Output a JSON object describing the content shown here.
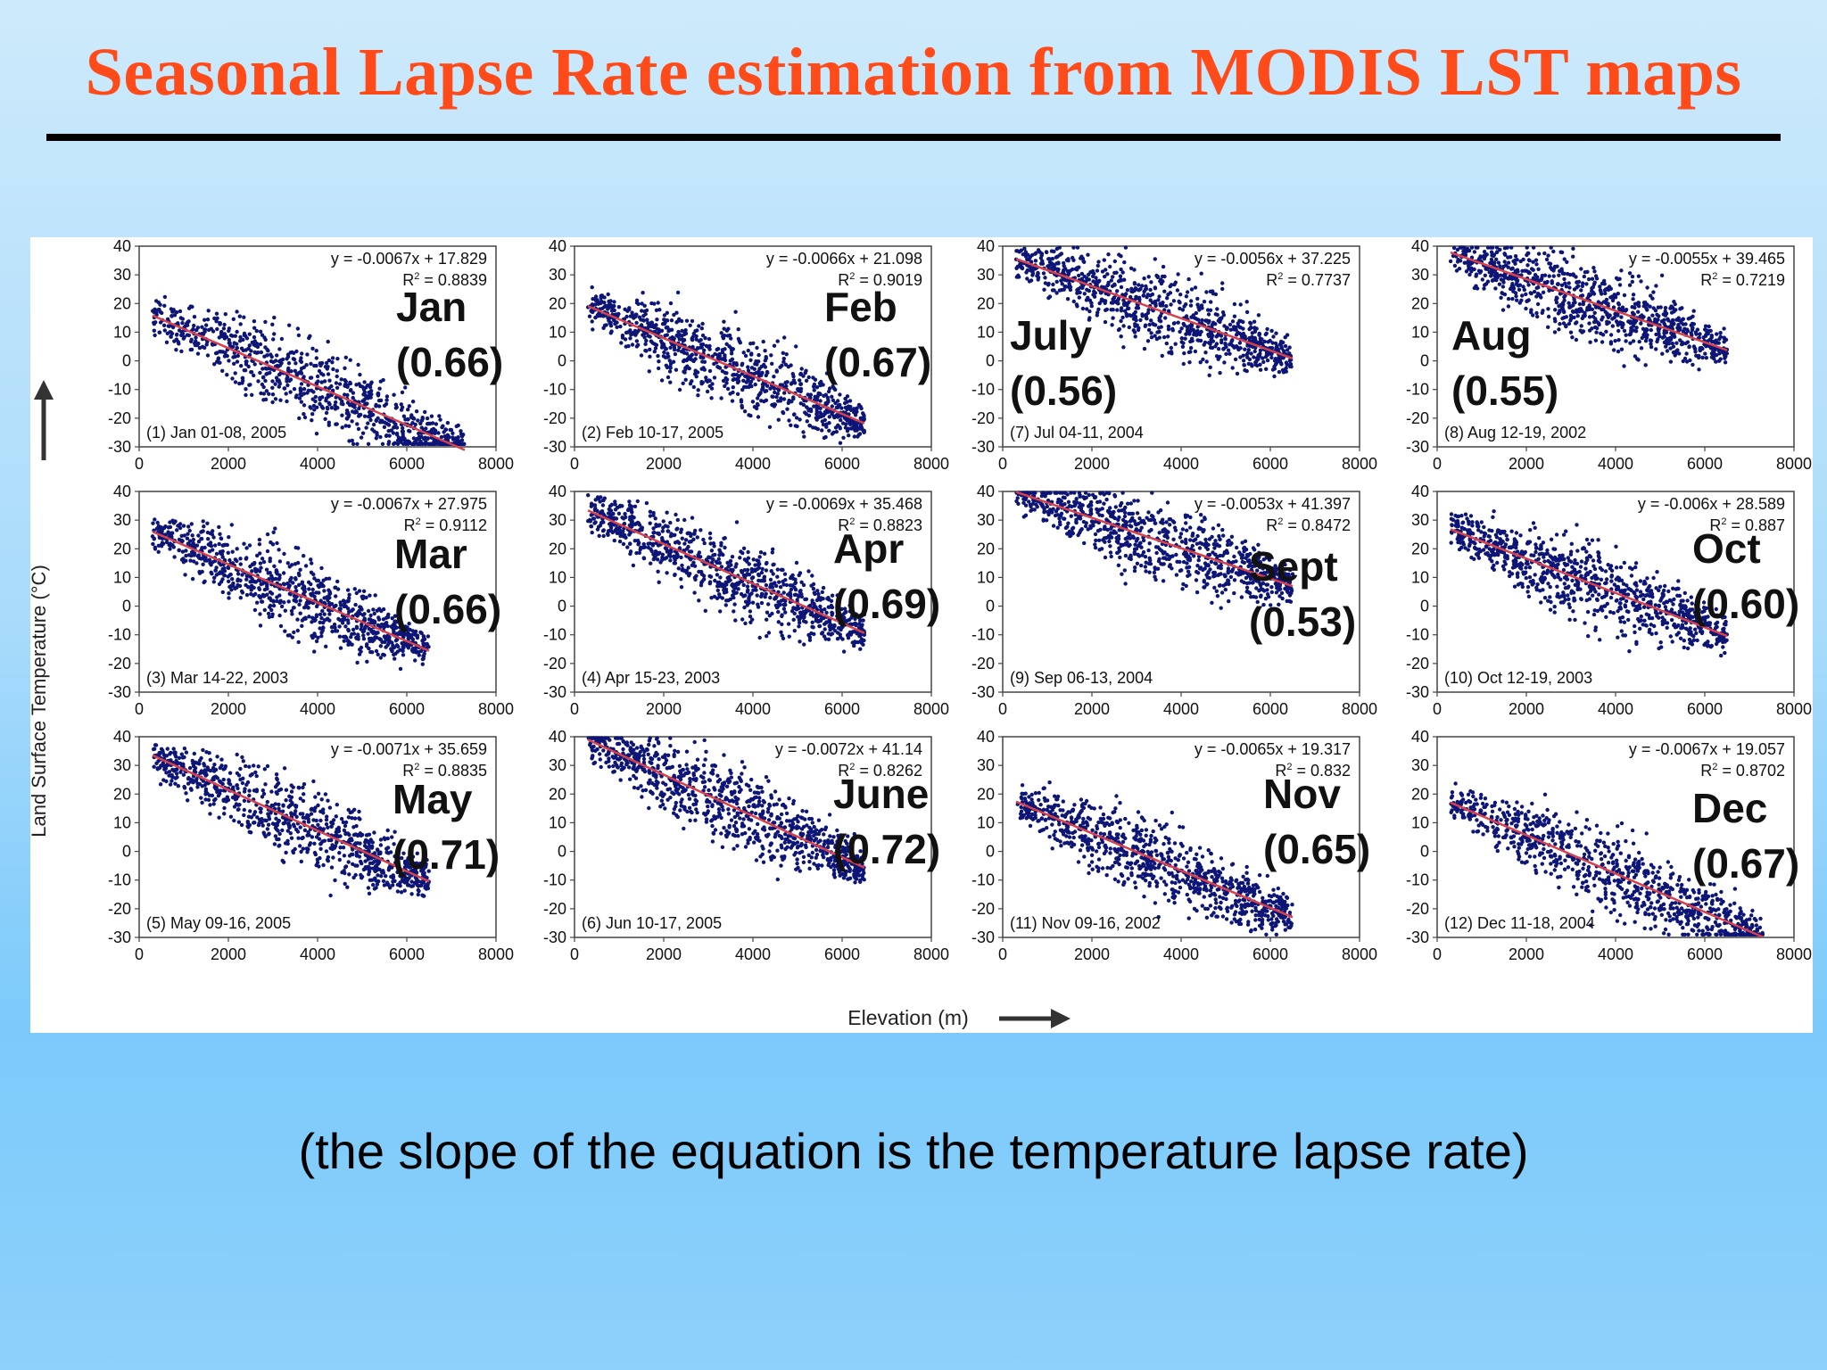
{
  "title": "Seasonal Lapse Rate estimation from MODIS LST maps",
  "caption": "(the slope of the equation is the temperature lapse rate)",
  "figure": {
    "ylabel": "Land Surface Temperature (°C)",
    "xlabel": "Elevation (m)"
  },
  "colors": {
    "title": "#ff4a1a",
    "points": "#0d1577",
    "fit_line": "#d8414a"
  },
  "chart_data": [
    {
      "type": "scatter",
      "panel_label": "(1) Jan 01-08, 2005",
      "equation": "y = -0.0067x + 17.829",
      "r2": "= 0.8839",
      "month": "Jan",
      "value": "(0.66)",
      "slope": -0.0067,
      "intercept": 17.829,
      "x_range": [
        300,
        7300
      ],
      "xlim": [
        0,
        8000
      ],
      "ylim": [
        -30,
        40
      ],
      "xticks": [
        "0",
        "2000",
        "4000",
        "6000",
        "8000"
      ],
      "yticks": [
        "40",
        "30",
        "20",
        "10",
        "0",
        "-10",
        "-20",
        "-30"
      ]
    },
    {
      "type": "scatter",
      "panel_label": "(2) Feb 10-17, 2005",
      "equation": "y = -0.0066x + 21.098",
      "r2": "= 0.9019",
      "month": "Feb",
      "value": "(0.67)",
      "slope": -0.0066,
      "intercept": 21.098,
      "x_range": [
        300,
        6500
      ],
      "xlim": [
        0,
        8000
      ],
      "ylim": [
        -30,
        40
      ],
      "xticks": [
        "0",
        "2000",
        "4000",
        "6000",
        "8000"
      ],
      "yticks": [
        "40",
        "30",
        "20",
        "10",
        "0",
        "-10",
        "-20",
        "-30"
      ]
    },
    {
      "type": "scatter",
      "panel_label": "(7) Jul 04-11, 2004",
      "equation": "y = -0.0056x + 37.225",
      "r2": "= 0.7737",
      "month": "July",
      "value": "(0.56)",
      "slope": -0.0056,
      "intercept": 37.225,
      "x_range": [
        300,
        6500
      ],
      "xlim": [
        0,
        8000
      ],
      "ylim": [
        -30,
        40
      ],
      "xticks": [
        "0",
        "2000",
        "4000",
        "6000",
        "8000"
      ],
      "yticks": [
        "40",
        "30",
        "20",
        "10",
        "0",
        "-10",
        "-20",
        "-30"
      ]
    },
    {
      "type": "scatter",
      "panel_label": "(8) Aug 12-19, 2002",
      "equation": "y = -0.0055x + 39.465",
      "r2": "= 0.7219",
      "month": "Aug",
      "value": "(0.55)",
      "slope": -0.0055,
      "intercept": 39.465,
      "x_range": [
        300,
        6500
      ],
      "xlim": [
        0,
        8000
      ],
      "ylim": [
        -30,
        40
      ],
      "xticks": [
        "0",
        "2000",
        "4000",
        "6000",
        "8000"
      ],
      "yticks": [
        "40",
        "30",
        "20",
        "10",
        "0",
        "-10",
        "-20",
        "-30"
      ]
    },
    {
      "type": "scatter",
      "panel_label": "(3) Mar 14-22, 2003",
      "equation": "y = -0.0067x + 27.975",
      "r2": "= 0.9112",
      "month": "Mar",
      "value": "(0.66)",
      "slope": -0.0067,
      "intercept": 27.975,
      "x_range": [
        300,
        6500
      ],
      "xlim": [
        0,
        8000
      ],
      "ylim": [
        -30,
        40
      ],
      "xticks": [
        "0",
        "2000",
        "4000",
        "6000",
        "8000"
      ],
      "yticks": [
        "40",
        "30",
        "20",
        "10",
        "0",
        "-10",
        "-20",
        "-30"
      ]
    },
    {
      "type": "scatter",
      "panel_label": "(4) Apr 15-23, 2003",
      "equation": "y = -0.0069x + 35.468",
      "r2": "= 0.8823",
      "month": "Apr",
      "value": "(0.69)",
      "slope": -0.0069,
      "intercept": 35.468,
      "x_range": [
        300,
        6500
      ],
      "xlim": [
        0,
        8000
      ],
      "ylim": [
        -30,
        40
      ],
      "xticks": [
        "0",
        "2000",
        "4000",
        "6000",
        "8000"
      ],
      "yticks": [
        "40",
        "30",
        "20",
        "10",
        "0",
        "-10",
        "-20",
        "-30"
      ]
    },
    {
      "type": "scatter",
      "panel_label": "(9) Sep 06-13, 2004",
      "equation": "y = -0.0053x + 41.397",
      "r2": "= 0.8472",
      "month": "Sept",
      "value": "(0.53)",
      "slope": -0.0053,
      "intercept": 41.397,
      "x_range": [
        300,
        6500
      ],
      "xlim": [
        0,
        8000
      ],
      "ylim": [
        -30,
        40
      ],
      "xticks": [
        "0",
        "2000",
        "4000",
        "6000",
        "8000"
      ],
      "yticks": [
        "40",
        "30",
        "20",
        "10",
        "0",
        "-10",
        "-20",
        "-30"
      ]
    },
    {
      "type": "scatter",
      "panel_label": "(10) Oct 12-19, 2003",
      "equation": "y = -0.006x + 28.589",
      "r2": "= 0.887",
      "month": "Oct",
      "value": "(0.60)",
      "slope": -0.006,
      "intercept": 28.589,
      "x_range": [
        300,
        6500
      ],
      "xlim": [
        0,
        8000
      ],
      "ylim": [
        -30,
        40
      ],
      "xticks": [
        "0",
        "2000",
        "4000",
        "6000",
        "8000"
      ],
      "yticks": [
        "40",
        "30",
        "20",
        "10",
        "0",
        "-10",
        "-20",
        "-30"
      ]
    },
    {
      "type": "scatter",
      "panel_label": "(5) May 09-16, 2005",
      "equation": "y = -0.0071x + 35.659",
      "r2": "= 0.8835",
      "month": "May",
      "value": "(0.71)",
      "slope": -0.0071,
      "intercept": 35.659,
      "x_range": [
        300,
        6500
      ],
      "xlim": [
        0,
        8000
      ],
      "ylim": [
        -30,
        40
      ],
      "xticks": [
        "0",
        "2000",
        "4000",
        "6000",
        "8000"
      ],
      "yticks": [
        "40",
        "30",
        "20",
        "10",
        "0",
        "-10",
        "-20",
        "-30"
      ]
    },
    {
      "type": "scatter",
      "panel_label": "(6) Jun 10-17, 2005",
      "equation": "y = -0.0072x + 41.14",
      "r2": "= 0.8262",
      "month": "June",
      "value": "(0.72)",
      "slope": -0.0072,
      "intercept": 41.14,
      "x_range": [
        300,
        6500
      ],
      "xlim": [
        0,
        8000
      ],
      "ylim": [
        -30,
        40
      ],
      "xticks": [
        "0",
        "2000",
        "4000",
        "6000",
        "8000"
      ],
      "yticks": [
        "40",
        "30",
        "20",
        "10",
        "0",
        "-10",
        "-20",
        "-30"
      ]
    },
    {
      "type": "scatter",
      "panel_label": "(11) Nov 09-16, 2002",
      "equation": "y = -0.0065x + 19.317",
      "r2": "= 0.832",
      "month": "Nov",
      "value": "(0.65)",
      "slope": -0.0065,
      "intercept": 19.317,
      "x_range": [
        300,
        6500
      ],
      "xlim": [
        0,
        8000
      ],
      "ylim": [
        -30,
        40
      ],
      "xticks": [
        "0",
        "2000",
        "4000",
        "6000",
        "8000"
      ],
      "yticks": [
        "40",
        "30",
        "20",
        "10",
        "0",
        "-10",
        "-20",
        "-30"
      ]
    },
    {
      "type": "scatter",
      "panel_label": "(12) Dec 11-18, 2004",
      "equation": "y = -0.0067x + 19.057",
      "r2": "= 0.8702",
      "month": "Dec",
      "value": "(0.67)",
      "slope": -0.0067,
      "intercept": 19.057,
      "x_range": [
        300,
        7300
      ],
      "xlim": [
        0,
        8000
      ],
      "ylim": [
        -30,
        40
      ],
      "xticks": [
        "0",
        "2000",
        "4000",
        "6000",
        "8000"
      ],
      "yticks": [
        "40",
        "30",
        "20",
        "10",
        "0",
        "-10",
        "-20",
        "-30"
      ]
    }
  ]
}
